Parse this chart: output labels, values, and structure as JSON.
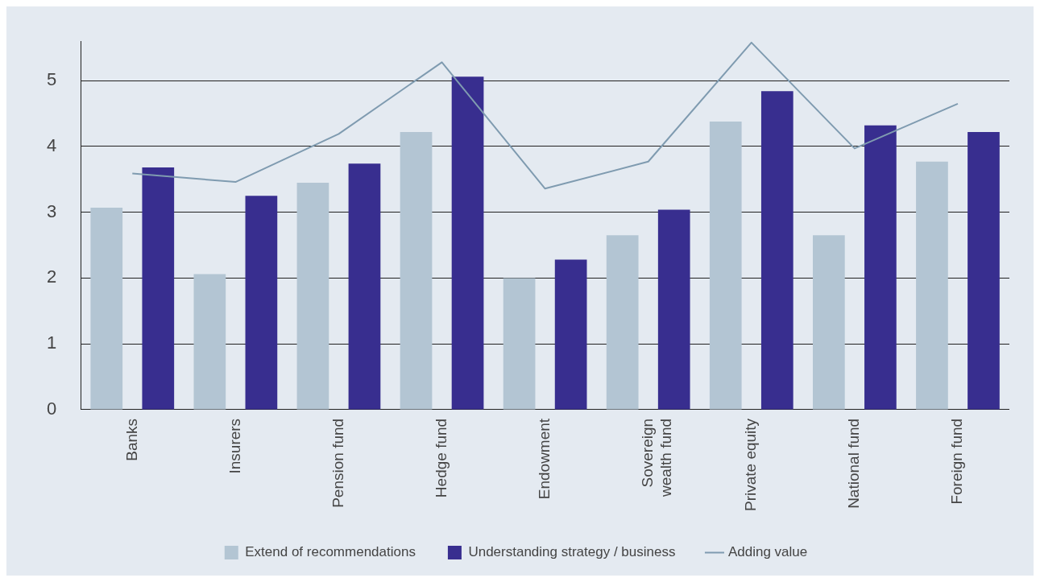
{
  "chart_data": {
    "type": "bar",
    "categories": [
      "Banks",
      "Insurers",
      "Pension fund",
      "Hedge fund",
      "Endowment",
      "Sovereign wealth fund",
      "Private equity",
      "National fund",
      "Foreign fund"
    ],
    "series": [
      {
        "name": "Extend of recommendations",
        "color": "#b3c5d3",
        "values": [
          3.07,
          2.06,
          3.45,
          4.22,
          2.0,
          2.65,
          4.38,
          2.65,
          3.77
        ]
      },
      {
        "name": "Understanding strategy / business",
        "color": "#382e8f",
        "values": [
          3.68,
          3.25,
          3.74,
          5.06,
          2.28,
          3.04,
          4.84,
          4.32,
          4.22
        ]
      },
      {
        "name": "Adding value",
        "type": "line",
        "color": "#7f9bb0",
        "values": [
          3.59,
          3.46,
          4.19,
          5.28,
          3.36,
          3.77,
          5.58,
          3.97,
          4.65
        ]
      }
    ],
    "ylim": [
      0,
      5.6
    ],
    "yticks": [
      0,
      1,
      2,
      3,
      4,
      5
    ],
    "grid": "y",
    "legend": "bottom",
    "marker": "none"
  }
}
